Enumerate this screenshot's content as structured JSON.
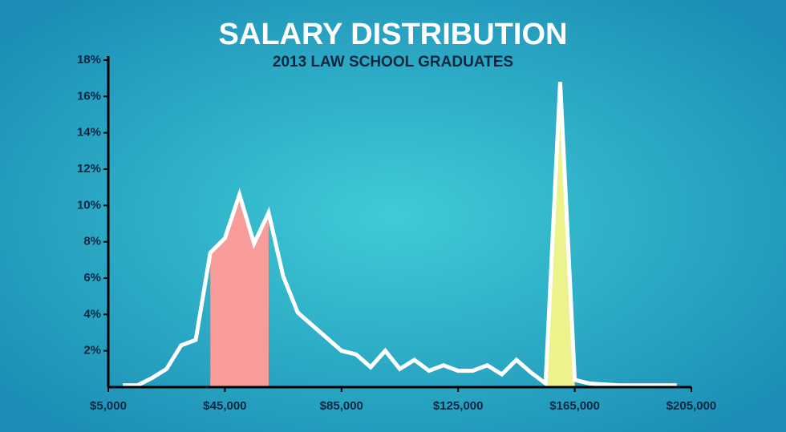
{
  "chart_data": {
    "type": "line",
    "title": "SALARY DISTRIBUTION",
    "subtitle": "2013 LAW SCHOOL GRADUATES",
    "x": [
      10000,
      15000,
      20000,
      25000,
      30000,
      35000,
      40000,
      45000,
      50000,
      55000,
      60000,
      65000,
      70000,
      75000,
      80000,
      85000,
      90000,
      95000,
      100000,
      105000,
      110000,
      115000,
      120000,
      125000,
      130000,
      135000,
      140000,
      145000,
      150000,
      155000,
      160000,
      165000,
      170000,
      180000,
      190000,
      200000
    ],
    "series": [
      {
        "color": "#ffffff",
        "values": [
          0.1,
          0.1,
          0.5,
          1.0,
          2.3,
          2.6,
          7.4,
          8.2,
          10.6,
          7.9,
          9.6,
          6.1,
          4.1,
          3.4,
          2.7,
          2.0,
          1.8,
          1.1,
          2.0,
          1.0,
          1.5,
          0.9,
          1.2,
          0.9,
          0.9,
          1.2,
          0.7,
          1.5,
          0.8,
          0.2,
          16.8,
          0.4,
          0.2,
          0.1,
          0.1,
          0.1
        ]
      }
    ],
    "highlights": [
      {
        "from": 40000,
        "to": 60000,
        "color": "#f79c98"
      },
      {
        "from": 155000,
        "to": 165000,
        "color": "#eef28c"
      }
    ],
    "xlim": [
      5000,
      205000
    ],
    "xticks": [
      {
        "value": 5000,
        "label": "$5,000"
      },
      {
        "value": 45000,
        "label": "$45,000"
      },
      {
        "value": 85000,
        "label": "$85,000"
      },
      {
        "value": 125000,
        "label": "$125,000"
      },
      {
        "value": 165000,
        "label": "$165,000"
      },
      {
        "value": 205000,
        "label": "$205,000"
      }
    ],
    "ylim": [
      0,
      18
    ],
    "yticks": [
      {
        "value": 2,
        "label": "2%"
      },
      {
        "value": 4,
        "label": "4%"
      },
      {
        "value": 6,
        "label": "6%"
      },
      {
        "value": 8,
        "label": "8%"
      },
      {
        "value": 10,
        "label": "10%"
      },
      {
        "value": 12,
        "label": "12%"
      },
      {
        "value": 14,
        "label": "14%"
      },
      {
        "value": 16,
        "label": "16%"
      },
      {
        "value": 18,
        "label": "18%"
      }
    ]
  }
}
